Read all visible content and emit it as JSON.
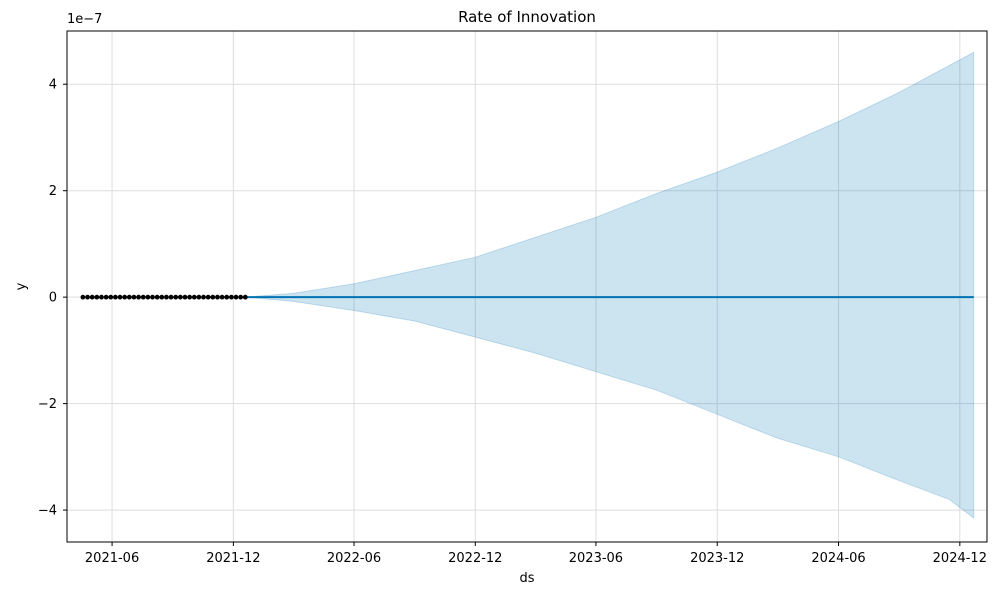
{
  "chart_data": {
    "type": "line",
    "title": "Rate of Innovation",
    "xlabel": "ds",
    "ylabel": "y",
    "y_offset_label": "1e−7",
    "y_multiplier": 1e-07,
    "x_range": [
      "2021-03-25",
      "2025-01-11"
    ],
    "ylim": [
      -4.6e-07,
      5e-07
    ],
    "grid": true,
    "x_ticks": [
      {
        "date": "2021-06-01",
        "label": "2021-06"
      },
      {
        "date": "2021-12-01",
        "label": "2021-12"
      },
      {
        "date": "2022-06-01",
        "label": "2022-06"
      },
      {
        "date": "2022-12-01",
        "label": "2022-12"
      },
      {
        "date": "2023-06-01",
        "label": "2023-06"
      },
      {
        "date": "2023-12-01",
        "label": "2023-12"
      },
      {
        "date": "2024-06-01",
        "label": "2024-06"
      },
      {
        "date": "2024-12-01",
        "label": "2024-12"
      }
    ],
    "y_ticks": [
      {
        "value": -4e-07,
        "label": "−4"
      },
      {
        "value": -2e-07,
        "label": "−2"
      },
      {
        "value": 0,
        "label": "0"
      },
      {
        "value": 2e-07,
        "label": "2"
      },
      {
        "value": 4e-07,
        "label": "4"
      }
    ],
    "observed": {
      "start": "2021-04-18",
      "end": "2021-12-19",
      "interval_days": 7,
      "value": 0,
      "color": "#000000"
    },
    "forecast": {
      "start": "2021-12-19",
      "end": "2024-12-22",
      "yhat": 0,
      "color": "#0072B2"
    },
    "uncertainty_band": {
      "color": "#0072B2",
      "opacity": 0.2,
      "upper": [
        [
          "2021-12-19",
          0
        ],
        [
          "2022-03-01",
          7e-09
        ],
        [
          "2022-06-01",
          2.5e-08
        ],
        [
          "2022-09-01",
          5e-08
        ],
        [
          "2022-12-01",
          7.5e-08
        ],
        [
          "2023-03-01",
          1.12e-07
        ],
        [
          "2023-06-01",
          1.5e-07
        ],
        [
          "2023-09-01",
          1.95e-07
        ],
        [
          "2023-12-01",
          2.35e-07
        ],
        [
          "2024-03-01",
          2.8e-07
        ],
        [
          "2024-06-01",
          3.3e-07
        ],
        [
          "2024-09-01",
          3.85e-07
        ],
        [
          "2024-12-22",
          4.6e-07
        ]
      ],
      "lower": [
        [
          "2021-12-19",
          0
        ],
        [
          "2022-03-01",
          -8e-09
        ],
        [
          "2022-06-01",
          -2.5e-08
        ],
        [
          "2022-09-01",
          -4.5e-08
        ],
        [
          "2022-12-01",
          -7.5e-08
        ],
        [
          "2023-03-01",
          -1.05e-07
        ],
        [
          "2023-06-01",
          -1.4e-07
        ],
        [
          "2023-09-01",
          -1.75e-07
        ],
        [
          "2023-12-01",
          -2.2e-07
        ],
        [
          "2024-03-01",
          -2.65e-07
        ],
        [
          "2024-06-01",
          -3e-07
        ],
        [
          "2024-09-01",
          -3.45e-07
        ],
        [
          "2024-11-15",
          -3.8e-07
        ],
        [
          "2024-12-22",
          -4.15e-07
        ]
      ]
    }
  }
}
